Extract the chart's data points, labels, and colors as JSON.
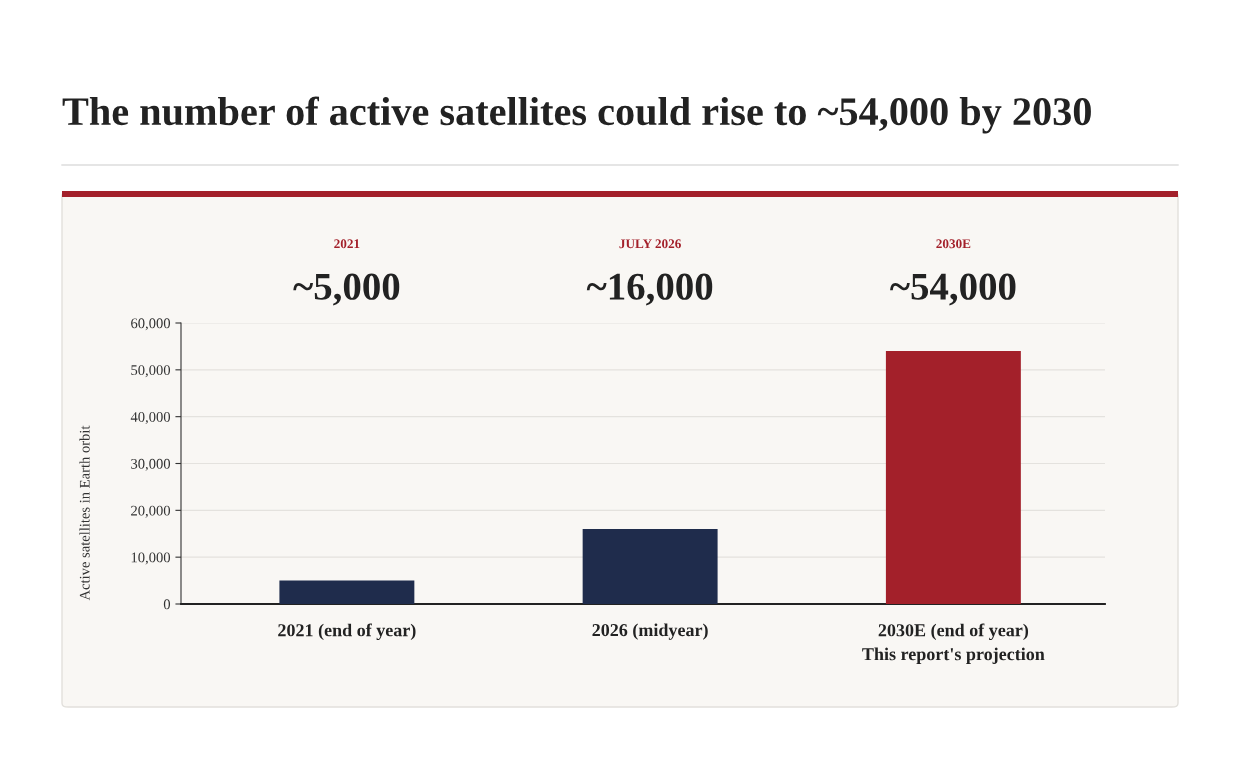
{
  "chart_data": {
    "type": "bar",
    "title": "The number of active satellites could rise to ~54,000 by 2030",
    "ylabel": "Active satellites in Earth orbit",
    "categories": [
      "2021 (end of year)",
      "2026 (midyear)",
      "2030E (end of year)\nThis report's projection"
    ],
    "values": [
      5000,
      16000,
      54000
    ],
    "colors": [
      "#1f2c4c",
      "#1f2c4c",
      "#a3202a"
    ],
    "annotations": [
      "2021",
      "~5,000",
      "JULY 2026",
      "~16,000",
      "2030E",
      "~54,000"
    ],
    "ylim": [
      0,
      60000
    ],
    "yticks": [
      0,
      {
        "value": 10000,
        "label": "10,000"
      },
      {
        "value": 20000,
        "label": "20,000"
      },
      {
        "value": 30000,
        "label": "30,000"
      },
      {
        "value": 40000,
        "label": "40,000"
      },
      {
        "value": 50000,
        "label": "50,000"
      },
      {
        "value": 60000,
        "label": "60,000"
      }
    ],
    "grid": "y",
    "legend": false
  }
}
